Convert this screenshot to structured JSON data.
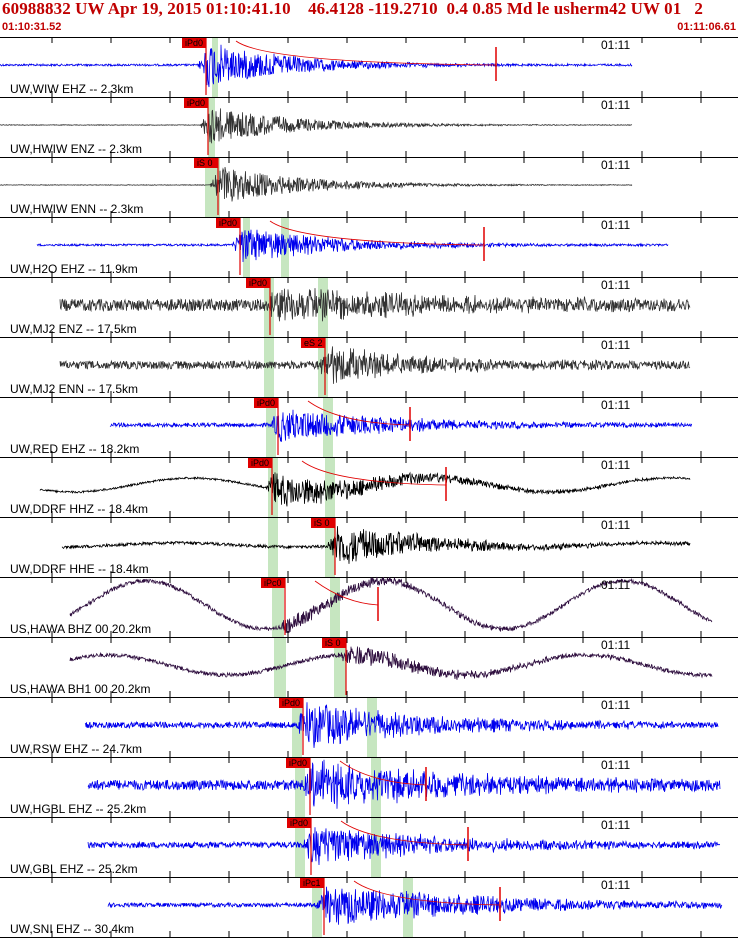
{
  "header": {
    "title": "60988832 UW Apr 19, 2015 01:10:41.10    46.4128 -119.2710  0.4 0.85 Md le usherm42 UW 01   2",
    "time_start": "01:10:31.52",
    "time_end": "01:11:06.61"
  },
  "colors": {
    "header_red": "#c00000",
    "pick_red": "#e00000",
    "window_green": "#c6e6c0",
    "blue": "#0000ee",
    "gray": "#333333",
    "black": "#000000",
    "purple": "#301040"
  },
  "traces": [
    {
      "label": "UW,WIW EHZ -- 2.3km",
      "time_label": "01:11",
      "pick": "iPd0",
      "color": "blue"
    },
    {
      "label": "UW,HWIW ENZ -- 2.3km",
      "time_label": "01:11",
      "pick": "iPd0",
      "color": "gray"
    },
    {
      "label": "UW,HWIW ENN -- 2.3km",
      "time_label": "01:11",
      "pick": "iS 0",
      "color": "gray"
    },
    {
      "label": "UW,H2O EHZ -- 11.9km",
      "time_label": "01:11",
      "pick": "iPd0",
      "color": "blue"
    },
    {
      "label": "UW,MJ2 ENZ -- 17.5km",
      "time_label": "01:11",
      "pick": "iPd0",
      "color": "gray"
    },
    {
      "label": "UW,MJ2 ENN -- 17.5km",
      "time_label": "01:11",
      "pick": "eS 2",
      "color": "gray"
    },
    {
      "label": "UW,RED EHZ -- 18.2km",
      "time_label": "01:11",
      "pick": "iPd0",
      "color": "blue"
    },
    {
      "label": "UW,DDRF HHZ -- 18.4km",
      "time_label": "01:11",
      "pick": "iPd0",
      "color": "black"
    },
    {
      "label": "UW,DDRF HHE -- 18.4km",
      "time_label": "01:11",
      "pick": "iS 0",
      "color": "black"
    },
    {
      "label": "US,HAWA BHZ 00 20.2km",
      "time_label": "01:11",
      "pick": "iPc0",
      "color": "purple"
    },
    {
      "label": "US,HAWA BH1 00 20.2km",
      "time_label": "01:11",
      "pick": "iS 0",
      "color": "purple"
    },
    {
      "label": "UW,RSW EHZ -- 24.7km",
      "time_label": "01:11",
      "pick": "iPd0",
      "color": "blue"
    },
    {
      "label": "UW,HGBL EHZ -- 25.2km",
      "time_label": "01:11",
      "pick": "iPd0",
      "color": "blue"
    },
    {
      "label": "UW,GBL EHZ -- 25.2km",
      "time_label": "01:11",
      "pick": "iPd0",
      "color": "blue"
    },
    {
      "label": "UW,SNI EHZ -- 30.4km",
      "time_label": "01:11",
      "pick": "iPc1",
      "color": "blue"
    }
  ]
}
